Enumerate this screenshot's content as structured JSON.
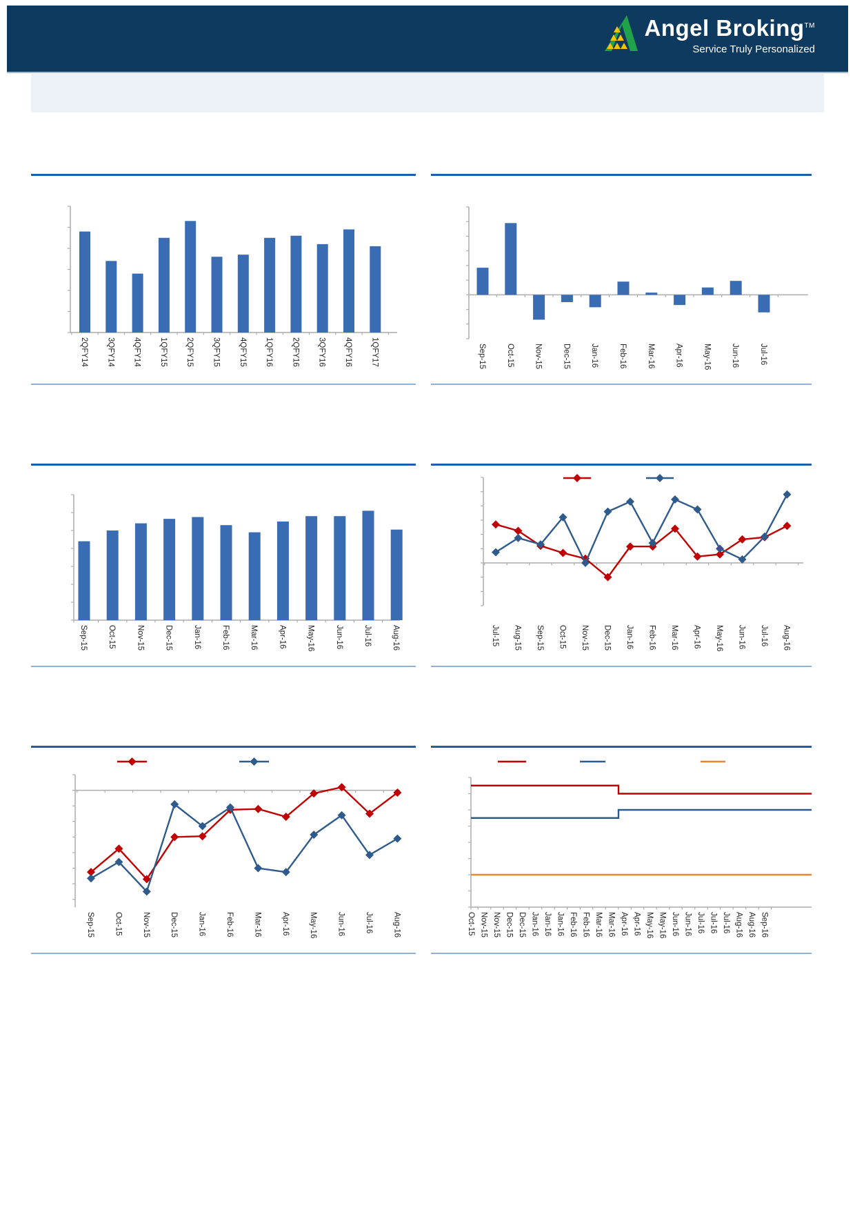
{
  "header": {
    "brand": "Angel Broking",
    "trademark": "TM",
    "tagline": "Service Truly Personalized"
  },
  "colors": {
    "header_navy": "#0F3A5F",
    "logo_green": "#1FA24A",
    "logo_yellow": "#F5C400",
    "title_rule_blue": "#1F5FA8",
    "bottom_rule_blue": "#93B1D2",
    "bar_blue": "#3A6CB4",
    "series_red": "#C00000",
    "series_blue": "#2E5A8C",
    "series_orange": "#E8872E",
    "axis_gray": "#ACACAC",
    "title_box_fill": "#EBF1F7"
  },
  "chart_data": [
    {
      "type": "bar",
      "position": "row1-left",
      "title": "",
      "categories": [
        "2QFY14",
        "3QFY14",
        "4QFY14",
        "1QFY15",
        "2QFY15",
        "3QFY15",
        "4QFY15",
        "1QFY16",
        "2QFY16",
        "3QFY16",
        "4QFY16",
        "1QFY17"
      ],
      "values": [
        4.8,
        3.4,
        2.8,
        4.5,
        5.3,
        3.6,
        3.7,
        4.5,
        4.6,
        4.2,
        4.9,
        4.1
      ],
      "bar_color": "#3A6CB4",
      "ylim": [
        0,
        6
      ],
      "ytick": 1,
      "y_tick_labels_visible": false,
      "x_tick_label_rotation": 90,
      "grid": false
    },
    {
      "type": "bar",
      "position": "row1-right",
      "title": "",
      "categories": [
        "Sep-15",
        "Oct-15",
        "Nov-15",
        "Dec-15",
        "Jan-16",
        "Feb-16",
        "Mar-16",
        "Apr-16",
        "May-16",
        "Jun-16",
        "Jul-16"
      ],
      "values": [
        1.85,
        4.9,
        -1.7,
        -0.5,
        -0.85,
        0.9,
        0.15,
        -0.7,
        0.5,
        0.95,
        -1.2
      ],
      "bar_color": "#3A6CB4",
      "ylim": [
        -3,
        6
      ],
      "ytick": 1,
      "y_tick_labels_visible": false,
      "x_tick_label_rotation": 90,
      "grid": false
    },
    {
      "type": "bar",
      "position": "row2-left",
      "title": "",
      "categories": [
        "Sep-15",
        "Oct-15",
        "Nov-15",
        "Dec-15",
        "Jan-16",
        "Feb-16",
        "Mar-16",
        "Apr-16",
        "May-16",
        "Jun-16",
        "Jul-16",
        "Aug-16"
      ],
      "values": [
        4.4,
        5.0,
        5.4,
        5.65,
        5.75,
        5.3,
        4.9,
        5.5,
        5.8,
        5.8,
        6.1,
        5.05
      ],
      "bar_color": "#3A6CB4",
      "ylim": [
        0,
        7
      ],
      "ytick": 1,
      "y_tick_labels_visible": false,
      "x_tick_label_rotation": 90,
      "grid": false
    },
    {
      "type": "line",
      "position": "row2-right",
      "title": "",
      "legend_position": "top",
      "categories": [
        "Jul-15",
        "Aug-15",
        "Sep-15",
        "Oct-15",
        "Nov-15",
        "Dec-15",
        "Jan-16",
        "Feb-16",
        "Mar-16",
        "Apr-16",
        "May-16",
        "Jun-16",
        "Jul-16",
        "Aug-16"
      ],
      "series": [
        {
          "name": "red",
          "color": "#C00000",
          "marker": "diamond",
          "values": [
            2.7,
            2.25,
            1.2,
            0.7,
            0.3,
            -1.0,
            1.15,
            1.15,
            2.4,
            0.45,
            0.6,
            1.65,
            1.8,
            2.6
          ]
        },
        {
          "name": "blue",
          "color": "#2E5A8C",
          "marker": "diamond",
          "values": [
            0.75,
            1.75,
            1.3,
            3.2,
            0.0,
            3.6,
            4.3,
            1.4,
            4.45,
            3.75,
            1.0,
            0.25,
            1.85,
            4.8
          ]
        }
      ],
      "ylim": [
        -3,
        6
      ],
      "ytick": 1,
      "y_tick_labels_visible": false,
      "x_tick_label_rotation": 90,
      "grid": false
    },
    {
      "type": "line",
      "position": "row3-left",
      "title": "",
      "legend_position": "top",
      "categories": [
        "Sep-15",
        "Oct-15",
        "Nov-15",
        "Dec-15",
        "Jan-16",
        "Feb-16",
        "Mar-16",
        "Apr-16",
        "May-16",
        "Jun-16",
        "Jul-16",
        "Aug-16"
      ],
      "series": [
        {
          "name": "red",
          "color": "#C00000",
          "marker": "diamond",
          "values": [
            -5.25,
            -3.75,
            -5.7,
            -3.0,
            -2.95,
            -1.25,
            -1.2,
            -1.7,
            -0.2,
            0.2,
            -1.5,
            -0.15
          ]
        },
        {
          "name": "blue",
          "color": "#2E5A8C",
          "marker": "diamond",
          "values": [
            -5.65,
            -4.6,
            -6.5,
            -0.9,
            -2.3,
            -1.1,
            -5.0,
            -5.25,
            -2.85,
            -1.6,
            -4.15,
            -3.1
          ]
        }
      ],
      "ylim": [
        -7.5,
        1
      ],
      "ytick": 1,
      "y_tick_labels_visible": false,
      "x_tick_label_rotation": 90,
      "grid": false
    },
    {
      "type": "step",
      "position": "row3-right",
      "title": "",
      "legend_position": "top",
      "categories": [
        "Oct-15",
        "Nov-15",
        "Nov-15",
        "Dec-15",
        "Dec-15",
        "Jan-16",
        "Jan-16",
        "Jan-16",
        "Feb-16",
        "Feb-16",
        "Mar-16",
        "Mar-16",
        "Apr-16",
        "Apr-16",
        "May-16",
        "May-16",
        "Jun-16",
        "Jun-16",
        "Jul-16",
        "Jul-16",
        "Jul-16",
        "Aug-16",
        "Aug-16",
        "Sep-16"
      ],
      "series": [
        {
          "name": "red",
          "color": "#C00000",
          "marker": "none",
          "values": [
            6.75,
            6.75,
            6.75,
            6.75,
            6.75,
            6.75,
            6.75,
            6.75,
            6.75,
            6.75,
            6.75,
            6.75,
            6.5,
            6.5,
            6.5,
            6.5,
            6.5,
            6.5,
            6.5,
            6.5,
            6.5,
            6.5,
            6.5,
            6.5
          ]
        },
        {
          "name": "blue",
          "color": "#2E5A8C",
          "marker": "none",
          "values": [
            5.75,
            5.75,
            5.75,
            5.75,
            5.75,
            5.75,
            5.75,
            5.75,
            5.75,
            5.75,
            5.75,
            5.75,
            6.0,
            6.0,
            6.0,
            6.0,
            6.0,
            6.0,
            6.0,
            6.0,
            6.0,
            6.0,
            6.0,
            6.0
          ]
        },
        {
          "name": "orange",
          "color": "#E8872E",
          "marker": "none",
          "values": [
            4.0,
            4.0,
            4.0,
            4.0,
            4.0,
            4.0,
            4.0,
            4.0,
            4.0,
            4.0,
            4.0,
            4.0,
            4.0,
            4.0,
            4.0,
            4.0,
            4.0,
            4.0,
            4.0,
            4.0,
            4.0,
            4.0,
            4.0,
            4.0
          ]
        }
      ],
      "ylim": [
        3,
        7
      ],
      "ytick": 0.5,
      "y_tick_labels_visible": false,
      "x_tick_label_rotation": 90,
      "grid": false
    }
  ]
}
